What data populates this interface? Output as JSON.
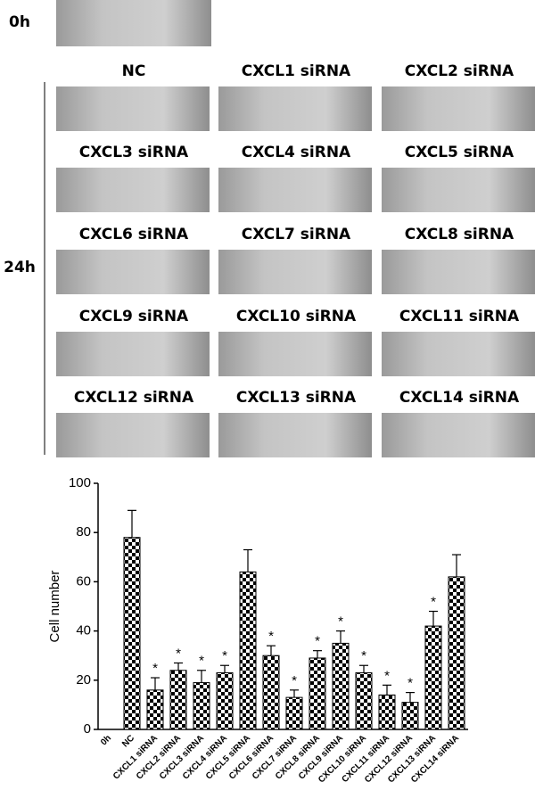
{
  "panel_a": {
    "time_labels": [
      "0h",
      "24h"
    ],
    "image_labels": [
      "NC",
      "CXCL1 siRNA",
      "CXCL2 siRNA",
      "CXCL3 siRNA",
      "CXCL4 siRNA",
      "CXCL5 siRNA",
      "CXCL6 siRNA",
      "CXCL7 siRNA",
      "CXCL8 siRNA",
      "CXCL9 siRNA",
      "CXCL10 siRNA",
      "CXCL11 siRNA",
      "CXCL12 siRNA",
      "CXCL13 siRNA",
      "CXCL14 siRNA"
    ]
  },
  "chart_data": {
    "type": "bar",
    "ylabel": "Cell number",
    "categories": [
      "0h",
      "NC",
      "CXCL1 siRNA",
      "CXCL2 siRNA",
      "CXCL3 siRNA",
      "CXCL4 siRNA",
      "CXCL5 siRNA",
      "CXCL6 siRNA",
      "CXCL7 siRNA",
      "CXCL8 siRNA",
      "CXCL9 siRNA",
      "CXCL10 siRNA",
      "CXCL11 siRNA",
      "CXCL12 siRNA",
      "CXCL13 siRNA",
      "CXCL14 siRNA"
    ],
    "values": [
      0,
      78,
      16,
      24,
      19,
      23,
      64,
      30,
      13,
      29,
      35,
      23,
      14,
      11,
      42,
      62
    ],
    "errors": [
      null,
      11,
      5,
      3,
      5,
      3,
      9,
      4,
      3,
      3,
      5,
      3,
      4,
      4,
      6,
      9
    ],
    "significant": [
      false,
      false,
      true,
      true,
      true,
      true,
      false,
      true,
      true,
      true,
      true,
      true,
      true,
      true,
      true,
      false
    ],
    "significance_mark": "*",
    "color": "#000000",
    "ylim": [
      0,
      100
    ],
    "yticks": [
      0,
      20,
      40,
      60,
      80,
      100
    ]
  }
}
